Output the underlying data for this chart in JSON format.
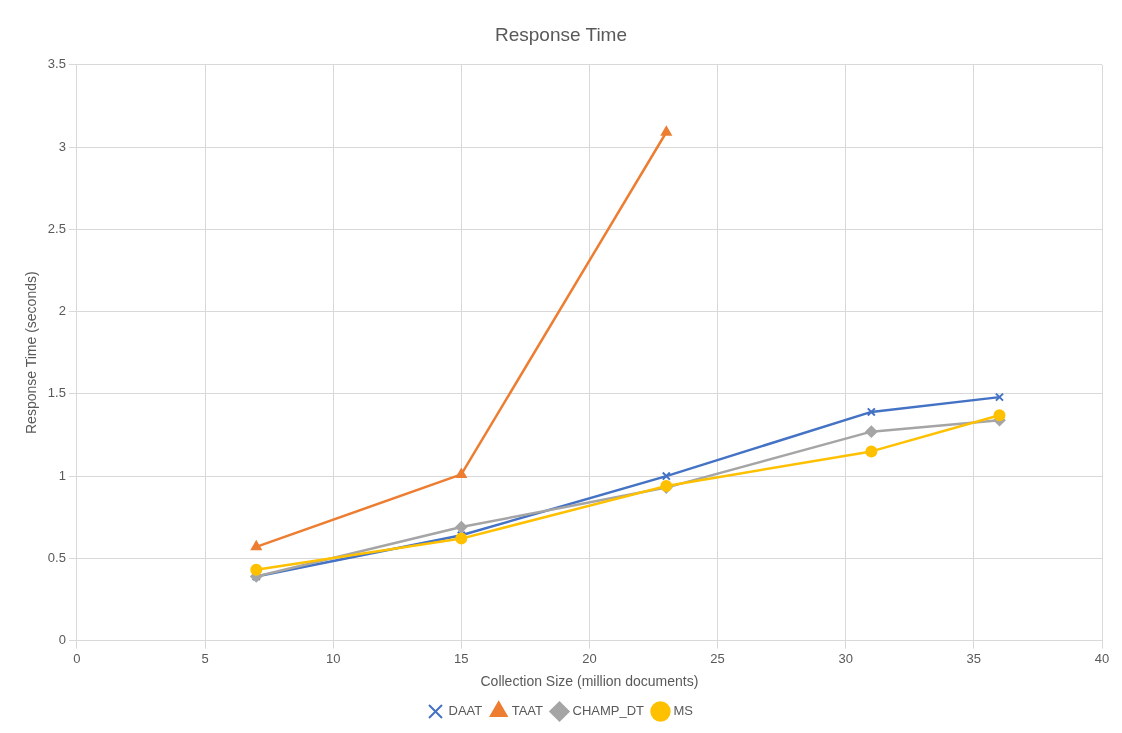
{
  "chart_data": {
    "type": "line",
    "title": "Response Time",
    "xlabel": "Collection Size (million documents)",
    "ylabel": "Response Time (seconds)",
    "xlim": [
      0,
      40
    ],
    "xticks": [
      0,
      5,
      10,
      15,
      20,
      25,
      30,
      35,
      40
    ],
    "ylim": [
      0,
      3.5
    ],
    "yticks": [
      0,
      0.5,
      1,
      1.5,
      2,
      2.5,
      3,
      3.5
    ],
    "grid": true,
    "legend": "bottom",
    "series": [
      {
        "name": "DAAT",
        "color": "#4472c4",
        "marker": "cross",
        "x": [
          7,
          15,
          23,
          31,
          36
        ],
        "values": [
          0.39,
          0.64,
          1.0,
          1.39,
          1.48
        ]
      },
      {
        "name": "TAAT",
        "color": "#ed7d31",
        "marker": "triangle",
        "x": [
          7,
          15,
          23
        ],
        "values": [
          0.57,
          1.01,
          3.09
        ]
      },
      {
        "name": "CHAMP_DT",
        "color": "#a5a5a5",
        "marker": "diamond",
        "x": [
          7,
          15,
          23,
          31,
          36
        ],
        "values": [
          0.39,
          0.69,
          0.93,
          1.27,
          1.34
        ]
      },
      {
        "name": "MS",
        "color": "#ffc000",
        "marker": "circle",
        "x": [
          7,
          15,
          23,
          31,
          36
        ],
        "values": [
          0.43,
          0.62,
          0.94,
          1.15,
          1.37
        ]
      }
    ]
  }
}
